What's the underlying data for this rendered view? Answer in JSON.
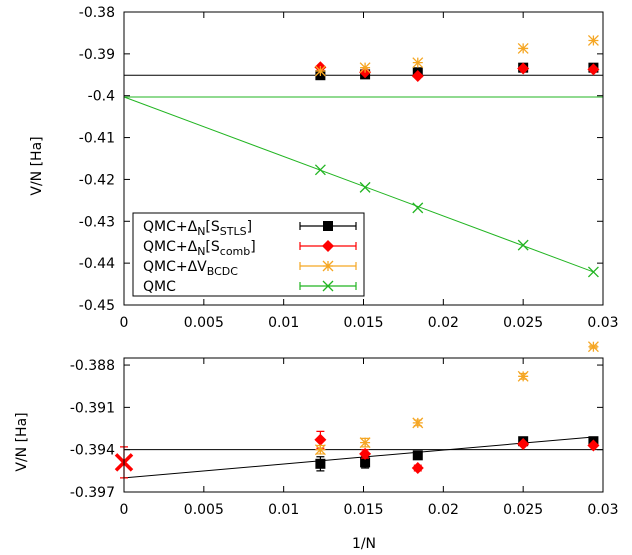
{
  "chart_data": [
    {
      "type": "scatter",
      "title": "",
      "xlabel": "",
      "ylabel": "V/N [Ha]",
      "xlim": [
        0,
        0.03
      ],
      "ylim": [
        -0.45,
        -0.38
      ],
      "grid": false,
      "legend_position": "bottom-left",
      "xticks": [
        {
          "v": 0,
          "label": "0"
        },
        {
          "v": 0.005,
          "label": "0.005"
        },
        {
          "v": 0.01,
          "label": "0.01"
        },
        {
          "v": 0.015,
          "label": "0.015"
        },
        {
          "v": 0.02,
          "label": "0.02"
        },
        {
          "v": 0.025,
          "label": "0.025"
        },
        {
          "v": 0.03,
          "label": "0.03"
        }
      ],
      "yticks": [
        {
          "v": -0.38,
          "label": "-0.38"
        },
        {
          "v": -0.39,
          "label": "-0.39"
        },
        {
          "v": -0.4,
          "label": "-0.4"
        },
        {
          "v": -0.41,
          "label": "-0.41"
        },
        {
          "v": -0.42,
          "label": "-0.42"
        },
        {
          "v": -0.43,
          "label": "-0.43"
        },
        {
          "v": -0.44,
          "label": "-0.44"
        },
        {
          "v": -0.45,
          "label": "-0.45"
        }
      ],
      "series": [
        {
          "key": "stls",
          "name": "QMC+ΔN[SSTLS]",
          "legend": {
            "base": "QMC+Δ",
            "sub1": "N",
            "mid": "[S",
            "sub2": "STLS",
            "end": "]"
          },
          "color": "#000000",
          "marker": "square",
          "x": [
            0.0123,
            0.0151,
            0.0184,
            0.025,
            0.0294
          ],
          "y": [
            -0.3951,
            -0.3949,
            -0.3944,
            -0.3933,
            -0.3933
          ]
        },
        {
          "key": "comb",
          "name": "QMC+ΔN[Scomb]",
          "legend": {
            "base": "QMC+Δ",
            "sub1": "N",
            "mid": "[S",
            "sub2": "comb",
            "end": "]"
          },
          "color": "#ff0000",
          "marker": "diamond",
          "x": [
            0.0123,
            0.0151,
            0.0184,
            0.025,
            0.0294
          ],
          "y": [
            -0.3932,
            -0.3944,
            -0.3953,
            -0.3935,
            -0.3937
          ]
        },
        {
          "key": "bcdc",
          "name": "QMC+ΔVBCDC",
          "legend": {
            "base": "QMC+ΔV",
            "sub1": "BCDC",
            "mid": "",
            "sub2": "",
            "end": ""
          },
          "color": "#f5a623",
          "marker": "star",
          "x": [
            0.0123,
            0.0151,
            0.0184,
            0.025,
            0.0294
          ],
          "y": [
            -0.3941,
            -0.3933,
            -0.3921,
            -0.3887,
            -0.3868
          ]
        },
        {
          "key": "qmc",
          "name": "QMC",
          "legend": {
            "base": "QMC",
            "sub1": "",
            "mid": "",
            "sub2": "",
            "end": ""
          },
          "color": "#22b522",
          "marker": "x",
          "x": [
            0.0123,
            0.0151,
            0.0184,
            0.025,
            0.0294
          ],
          "y": [
            -0.4177,
            -0.4219,
            -0.4268,
            -0.4357,
            -0.4421
          ]
        }
      ],
      "lines": [
        {
          "color": "#000000",
          "x": [
            0,
            0.03
          ],
          "y": [
            -0.3951,
            -0.3951
          ]
        },
        {
          "color": "#22b522",
          "x": [
            0,
            0.03
          ],
          "y": [
            -0.4003,
            -0.4003
          ]
        },
        {
          "color": "#22b522",
          "x": [
            0,
            0.0294
          ],
          "y": [
            -0.4003,
            -0.4421
          ]
        }
      ]
    },
    {
      "type": "scatter",
      "title": "",
      "xlabel": "1/N",
      "ylabel": "V/N [Ha]",
      "xlim": [
        0,
        0.03
      ],
      "ylim": [
        -0.397,
        -0.3875
      ],
      "grid": false,
      "xticks": [
        {
          "v": 0,
          "label": "0"
        },
        {
          "v": 0.005,
          "label": "0.005"
        },
        {
          "v": 0.01,
          "label": "0.01"
        },
        {
          "v": 0.015,
          "label": "0.015"
        },
        {
          "v": 0.02,
          "label": "0.02"
        },
        {
          "v": 0.025,
          "label": "0.025"
        },
        {
          "v": 0.03,
          "label": "0.03"
        }
      ],
      "yticks": [
        {
          "v": -0.388,
          "label": "-0.388"
        },
        {
          "v": -0.391,
          "label": "-0.391"
        },
        {
          "v": -0.394,
          "label": "-0.394"
        },
        {
          "v": -0.397,
          "label": "-0.397"
        }
      ],
      "series": [
        {
          "key": "stls",
          "color": "#000000",
          "marker": "square",
          "x": [
            0.0123,
            0.0151,
            0.0184,
            0.025,
            0.0294
          ],
          "y": [
            -0.395,
            -0.3949,
            -0.3944,
            -0.3934,
            -0.3934
          ],
          "err": [
            0.0005,
            0.0004,
            0.0002,
            0.0001,
            0.0001
          ]
        },
        {
          "key": "comb",
          "color": "#ff0000",
          "marker": "diamond",
          "x": [
            0.0123,
            0.0151,
            0.0184,
            0.025,
            0.0294
          ],
          "y": [
            -0.3933,
            -0.3943,
            -0.3953,
            -0.3936,
            -0.3937
          ],
          "err": [
            0.0006,
            0.0003,
            0.0002,
            0.0001,
            0.0001
          ]
        },
        {
          "key": "bcdc",
          "color": "#f5a623",
          "marker": "star",
          "x": [
            0.0123,
            0.0151,
            0.0184,
            0.025,
            0.0294
          ],
          "y": [
            -0.394,
            -0.3935,
            -0.3921,
            -0.3888,
            -0.3867
          ],
          "err": [
            0.0003,
            0.0003,
            0.0002,
            0.0002,
            0.0001
          ]
        },
        {
          "key": "extrap",
          "color": "#ff0000",
          "marker": "bigx",
          "x": [
            0
          ],
          "y": [
            -0.3949
          ],
          "err": [
            0.0011
          ]
        }
      ],
      "lines": [
        {
          "color": "#000000",
          "x": [
            0,
            0.03
          ],
          "y": [
            -0.394,
            -0.394
          ]
        },
        {
          "color": "#000000",
          "x": [
            0,
            0.0294
          ],
          "y": [
            -0.396,
            -0.3931
          ]
        }
      ]
    }
  ]
}
